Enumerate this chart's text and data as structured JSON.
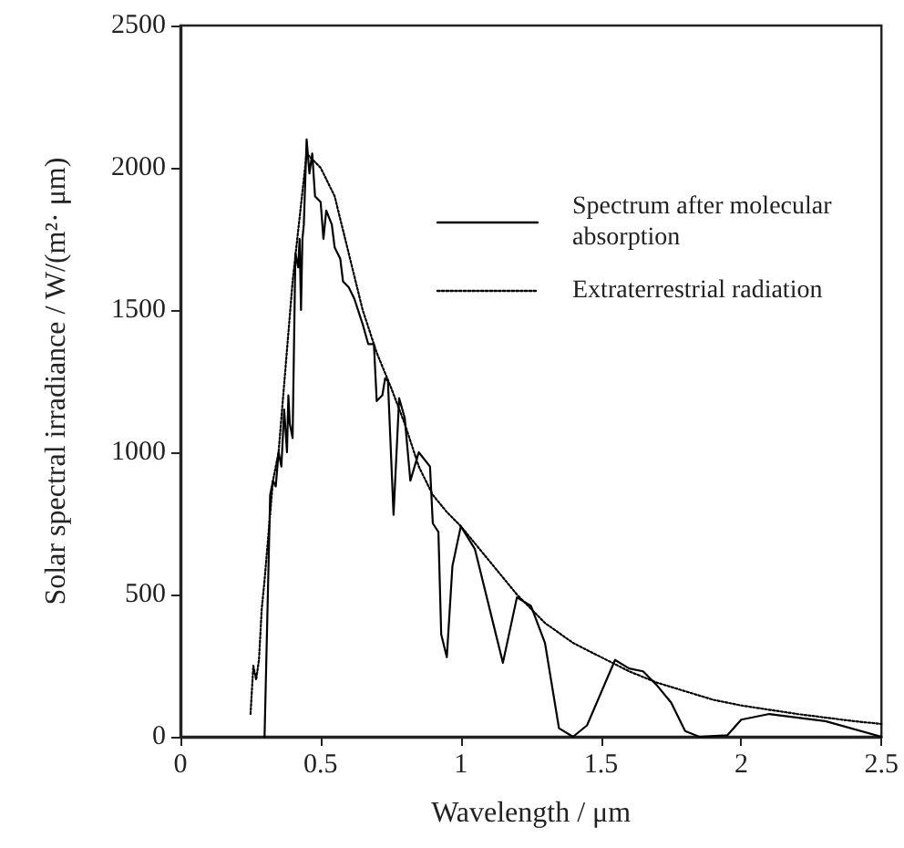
{
  "chart_data": {
    "type": "line",
    "xlabel": "Wavelength / μm",
    "ylabel": "Solar spectral irradiance / W/(m²· μm)",
    "xlim": [
      0,
      2.5
    ],
    "xticks": [
      0,
      0.5,
      1,
      1.5,
      2,
      2.5
    ],
    "ylim": [
      0,
      2500
    ],
    "yticks": [
      0,
      500,
      1000,
      1500,
      2000,
      2500
    ],
    "grid": false,
    "legend": "top right",
    "marker": "none",
    "series": [
      {
        "name": "Spectrum after molecular absorption",
        "color": "#000000",
        "line_style": "solid",
        "x": [
          0.3,
          0.32,
          0.33,
          0.34,
          0.35,
          0.36,
          0.37,
          0.38,
          0.385,
          0.39,
          0.4,
          0.41,
          0.42,
          0.425,
          0.43,
          0.435,
          0.44,
          0.45,
          0.46,
          0.47,
          0.48,
          0.5,
          0.51,
          0.52,
          0.54,
          0.55,
          0.57,
          0.58,
          0.6,
          0.62,
          0.65,
          0.67,
          0.69,
          0.7,
          0.72,
          0.73,
          0.74,
          0.76,
          0.78,
          0.8,
          0.82,
          0.85,
          0.89,
          0.9,
          0.92,
          0.93,
          0.95,
          0.97,
          1.0,
          1.05,
          1.15,
          1.2,
          1.25,
          1.3,
          1.35,
          1.4,
          1.45,
          1.55,
          1.6,
          1.65,
          1.7,
          1.75,
          1.8,
          1.85,
          1.95,
          2.0,
          2.1,
          2.3,
          2.5
        ],
        "values": [
          0,
          850,
          900,
          880,
          1000,
          950,
          1150,
          1000,
          1200,
          1100,
          1050,
          1700,
          1650,
          1750,
          1500,
          1750,
          1800,
          2100,
          1980,
          2050,
          1900,
          1880,
          1750,
          1850,
          1800,
          1720,
          1680,
          1600,
          1580,
          1540,
          1450,
          1380,
          1380,
          1180,
          1200,
          1260,
          1250,
          780,
          1190,
          1120,
          900,
          1000,
          950,
          750,
          720,
          360,
          280,
          600,
          740,
          660,
          260,
          490,
          460,
          330,
          30,
          0,
          40,
          270,
          240,
          230,
          180,
          120,
          20,
          0,
          5,
          60,
          80,
          55,
          0
        ]
      },
      {
        "name": "Extraterrestrial radiation",
        "color": "#000000",
        "line_style": "dotted",
        "x": [
          0.25,
          0.26,
          0.27,
          0.28,
          0.29,
          0.3,
          0.33,
          0.35,
          0.4,
          0.45,
          0.5,
          0.55,
          0.6,
          0.65,
          0.7,
          0.75,
          0.8,
          0.85,
          0.9,
          0.95,
          1.0,
          1.1,
          1.2,
          1.3,
          1.4,
          1.5,
          1.6,
          1.7,
          1.8,
          1.9,
          2.0,
          2.2,
          2.4,
          2.5
        ],
        "values": [
          80,
          250,
          200,
          270,
          450,
          550,
          900,
          1000,
          1600,
          2050,
          2000,
          1900,
          1700,
          1500,
          1350,
          1230,
          1100,
          950,
          850,
          790,
          740,
          620,
          500,
          400,
          330,
          280,
          230,
          190,
          160,
          130,
          110,
          80,
          55,
          45
        ]
      }
    ]
  }
}
